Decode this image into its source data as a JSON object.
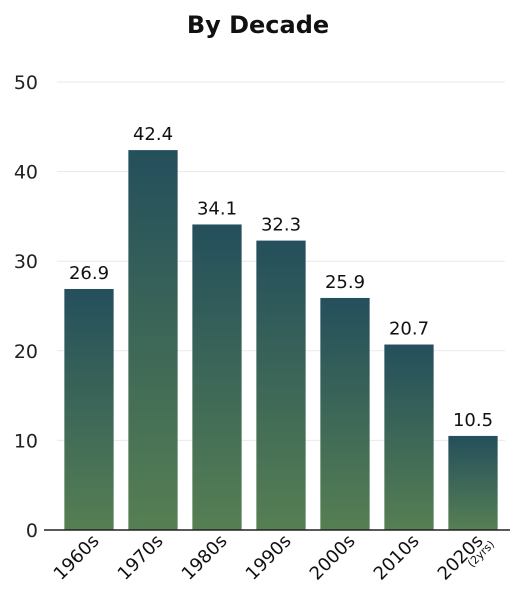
{
  "chart_data": {
    "type": "bar",
    "title": "By Decade",
    "xlabel": "",
    "ylabel": "",
    "ylim": [
      0,
      50
    ],
    "yticks": [
      0,
      10,
      20,
      30,
      40,
      50
    ],
    "grid": true,
    "categories": [
      "1960s",
      "1970s",
      "1980s",
      "1990s",
      "2000s",
      "2010s",
      "2020s"
    ],
    "category_notes": [
      "",
      "",
      "",
      "",
      "",
      "",
      "(2yrs)"
    ],
    "values": [
      26.9,
      42.4,
      34.1,
      32.3,
      25.9,
      20.7,
      10.5
    ],
    "value_labels": [
      "26.9",
      "42.4",
      "34.1",
      "32.3",
      "25.9",
      "20.7",
      "10.5"
    ],
    "colors": {
      "bar_top": "#244f5c",
      "bar_bottom": "#567f53",
      "grid": "#e9e9e9",
      "axis": "#222222"
    }
  }
}
